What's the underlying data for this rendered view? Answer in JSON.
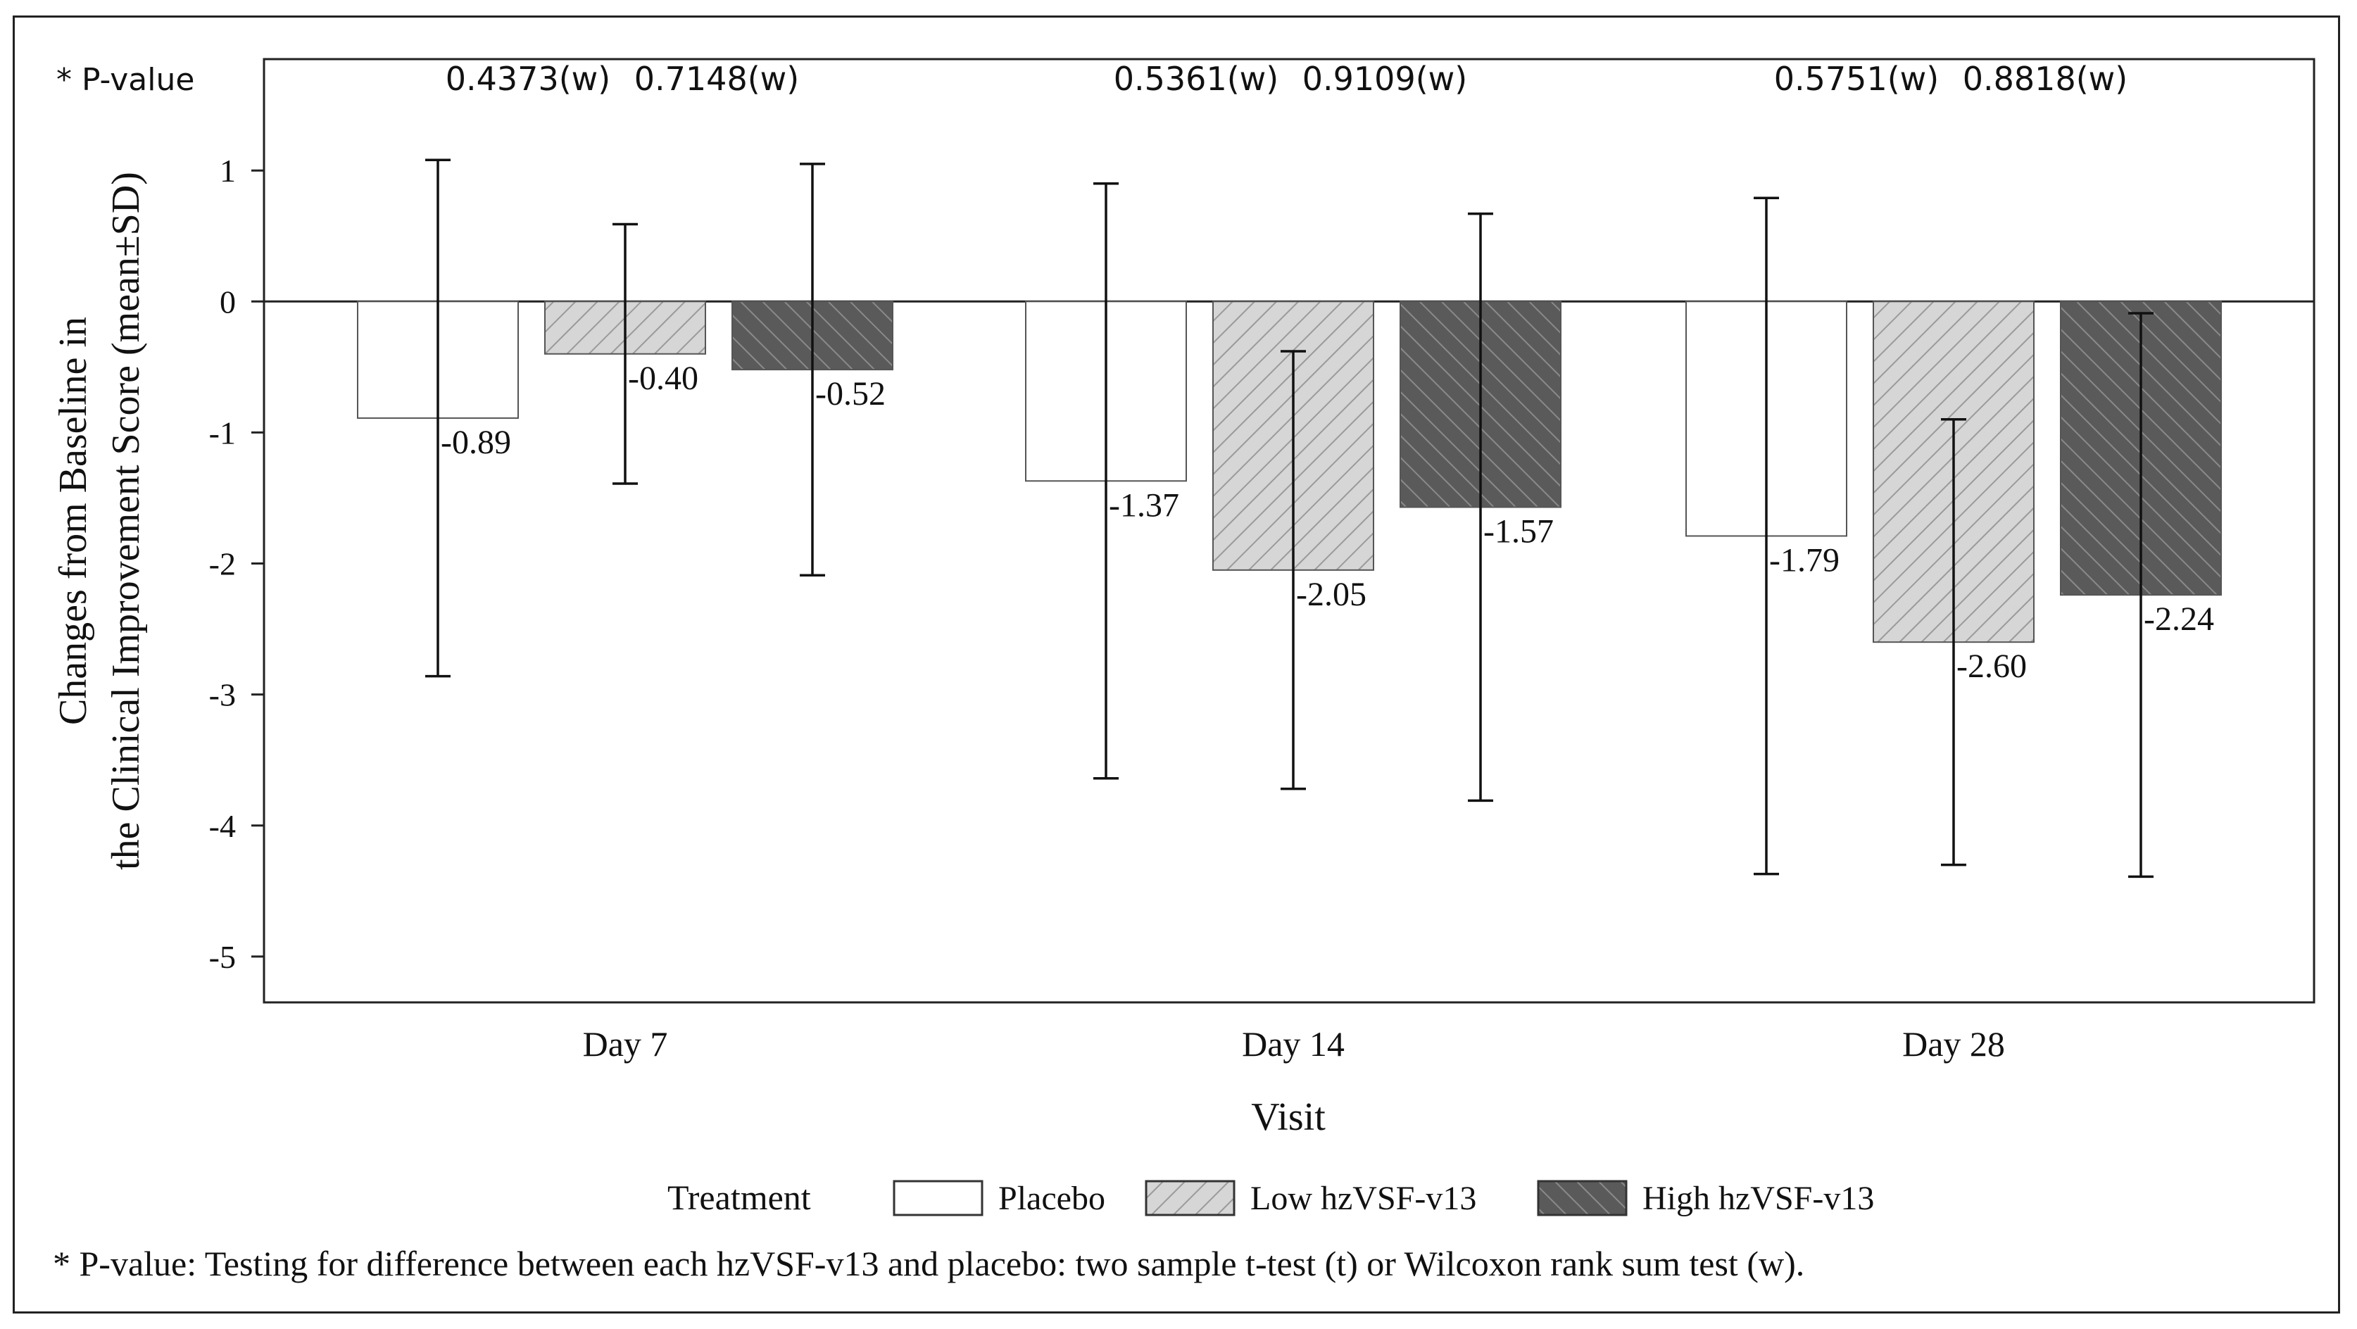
{
  "chart_data": {
    "type": "bar",
    "title": "",
    "xlabel": "Visit",
    "ylabel": "Changes from Baseline in the Clinical Improvement Score (mean±SD)",
    "ylabel_lines": [
      "Changes from Baseline in",
      "the Clinical Improvement Score (mean±SD)"
    ],
    "ylim": [
      -5.35,
      1.85
    ],
    "yticks": [
      1,
      0,
      -1,
      -2,
      -3,
      -4,
      -5
    ],
    "categories": [
      "Day 7",
      "Day 14",
      "Day 28"
    ],
    "series": [
      {
        "name": "Placebo",
        "pattern": "none",
        "fill": "#ffffff",
        "values": [
          -0.89,
          -1.37,
          -1.79
        ],
        "sd": [
          1.97,
          2.27,
          2.58
        ],
        "labels": [
          "-0.89",
          "-1.37",
          "-1.79"
        ]
      },
      {
        "name": "Low hzVSF-v13",
        "pattern": "light-hatch",
        "fill": "#d6d6d6",
        "values": [
          -0.4,
          -2.05,
          -2.6
        ],
        "sd": [
          0.99,
          1.67,
          1.7
        ],
        "labels": [
          "-0.40",
          "-2.05",
          "-2.60"
        ]
      },
      {
        "name": "High hzVSF-v13",
        "pattern": "dark-hatch",
        "fill": "#5a5a5a",
        "values": [
          -0.52,
          -1.57,
          -2.24
        ],
        "sd": [
          1.57,
          2.24,
          2.15
        ],
        "labels": [
          "-0.52",
          "-1.57",
          "-2.24"
        ]
      }
    ],
    "pvalue_label": "* P-value",
    "pvalues": [
      [
        "0.4373(w)",
        "0.7148(w)"
      ],
      [
        "0.5361(w)",
        "0.9109(w)"
      ],
      [
        "0.5751(w)",
        "0.8818(w)"
      ]
    ],
    "legend_title": "Treatment",
    "legend_position": "bottom",
    "footnote": "* P-value: Testing for difference between each hzVSF-v13 and placebo: two sample t-test (t) or Wilcoxon rank sum test (w).",
    "colors": {
      "axis": "#222222",
      "hatch_light": "#9a9a9a",
      "hatch_dark": "#8a8a8a",
      "text": "#111111"
    }
  }
}
